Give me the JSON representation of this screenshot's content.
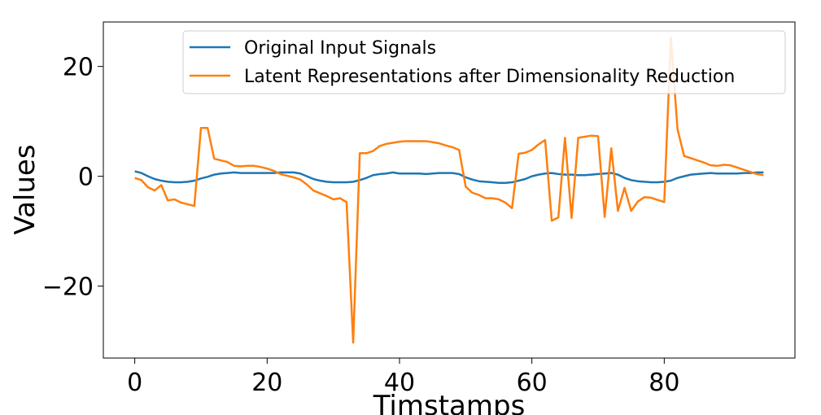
{
  "chart_data": {
    "type": "line",
    "xlabel": "Timstamps",
    "ylabel": "Values",
    "x": [
      0,
      1,
      2,
      3,
      4,
      5,
      6,
      7,
      8,
      9,
      10,
      11,
      12,
      13,
      14,
      15,
      16,
      17,
      18,
      19,
      20,
      21,
      22,
      23,
      24,
      25,
      26,
      27,
      28,
      29,
      30,
      31,
      32,
      33,
      34,
      35,
      36,
      37,
      38,
      39,
      40,
      41,
      42,
      43,
      44,
      45,
      46,
      47,
      48,
      49,
      50,
      51,
      52,
      53,
      54,
      55,
      56,
      57,
      58,
      59,
      60,
      61,
      62,
      63,
      64,
      65,
      66,
      67,
      68,
      69,
      70,
      71,
      72,
      73,
      74,
      75,
      76,
      77,
      78,
      79,
      80,
      81,
      82,
      83,
      84,
      85,
      86,
      87,
      88,
      89,
      90,
      91,
      92,
      93,
      94,
      95
    ],
    "series": [
      {
        "name": "Original Input Signals",
        "color": "#1f77b4",
        "values": [
          0.9,
          0.6,
          0,
          -0.5,
          -0.8,
          -1.0,
          -1.1,
          -1.1,
          -1.0,
          -0.8,
          -0.4,
          -0.1,
          0.3,
          0.5,
          0.6,
          0.7,
          0.6,
          0.6,
          0.6,
          0.6,
          0.6,
          0.6,
          0.7,
          0.7,
          0.7,
          0.5,
          0,
          -0.5,
          -0.8,
          -1.0,
          -1.1,
          -1.1,
          -1.1,
          -1.0,
          -0.7,
          -0.3,
          0.2,
          0.4,
          0.5,
          0.7,
          0.5,
          0.5,
          0.5,
          0.5,
          0.4,
          0.5,
          0.6,
          0.6,
          0.6,
          0.4,
          -0.2,
          -0.6,
          -0.9,
          -1.0,
          -1.1,
          -1.2,
          -1.2,
          -1.1,
          -0.8,
          -0.5,
          0,
          0.3,
          0.5,
          0.6,
          0.4,
          0.3,
          0.3,
          0.2,
          0.2,
          0.3,
          0.4,
          0.5,
          0.6,
          0.3,
          -0.3,
          -0.7,
          -0.9,
          -1.0,
          -1.1,
          -1.1,
          -1.0,
          -0.8,
          -0.3,
          0.0,
          0.3,
          0.4,
          0.5,
          0.6,
          0.5,
          0.5,
          0.5,
          0.5,
          0.6,
          0.6,
          0.7,
          0.7
        ]
      },
      {
        "name": "Latent Representations after Dimensionality Reduction",
        "color": "#ff7f0e",
        "values": [
          -0.3,
          -0.7,
          -2,
          -2.6,
          -1.6,
          -4.4,
          -4.2,
          -4.8,
          -5.1,
          -5.4,
          8.8,
          8.8,
          3.2,
          2.9,
          2.6,
          1.9,
          1.8,
          1.9,
          1.9,
          1.7,
          1.4,
          1.0,
          0.4,
          0.1,
          -0.2,
          -0.6,
          -1.5,
          -2.6,
          -3.1,
          -3.6,
          -4.2,
          -4.0,
          -4.7,
          -30.3,
          4.2,
          4.2,
          4.6,
          5.5,
          5.9,
          6.1,
          6.3,
          6.4,
          6.4,
          6.4,
          6.4,
          6.2,
          6.0,
          5.6,
          5.3,
          4.8,
          -1.9,
          -3.0,
          -3.4,
          -4.0,
          -4.0,
          -4.2,
          -4.8,
          -5.8,
          4.1,
          4.3,
          4.8,
          5.8,
          6.6,
          -8.1,
          -7.5,
          7.0,
          -7.6,
          7.0,
          7.2,
          7.4,
          7.3,
          -7.4,
          5.1,
          -6.3,
          -2.1,
          -6.3,
          -4.6,
          -3.8,
          -3.9,
          -4.3,
          -4.7,
          25.3,
          8.6,
          3.7,
          3.3,
          2.9,
          2.5,
          2.0,
          1.9,
          2.1,
          2.0,
          1.6,
          1.2,
          0.8,
          0.4,
          0.2
        ]
      }
    ],
    "xlim": [
      -4.75,
      99.75
    ],
    "ylim": [
      -33.1,
      28.1
    ],
    "xticks": [
      0,
      20,
      40,
      60,
      80
    ],
    "yticks": [
      {
        "value": -20,
        "label": "−20"
      },
      0,
      20
    ],
    "legend": "upper right"
  }
}
